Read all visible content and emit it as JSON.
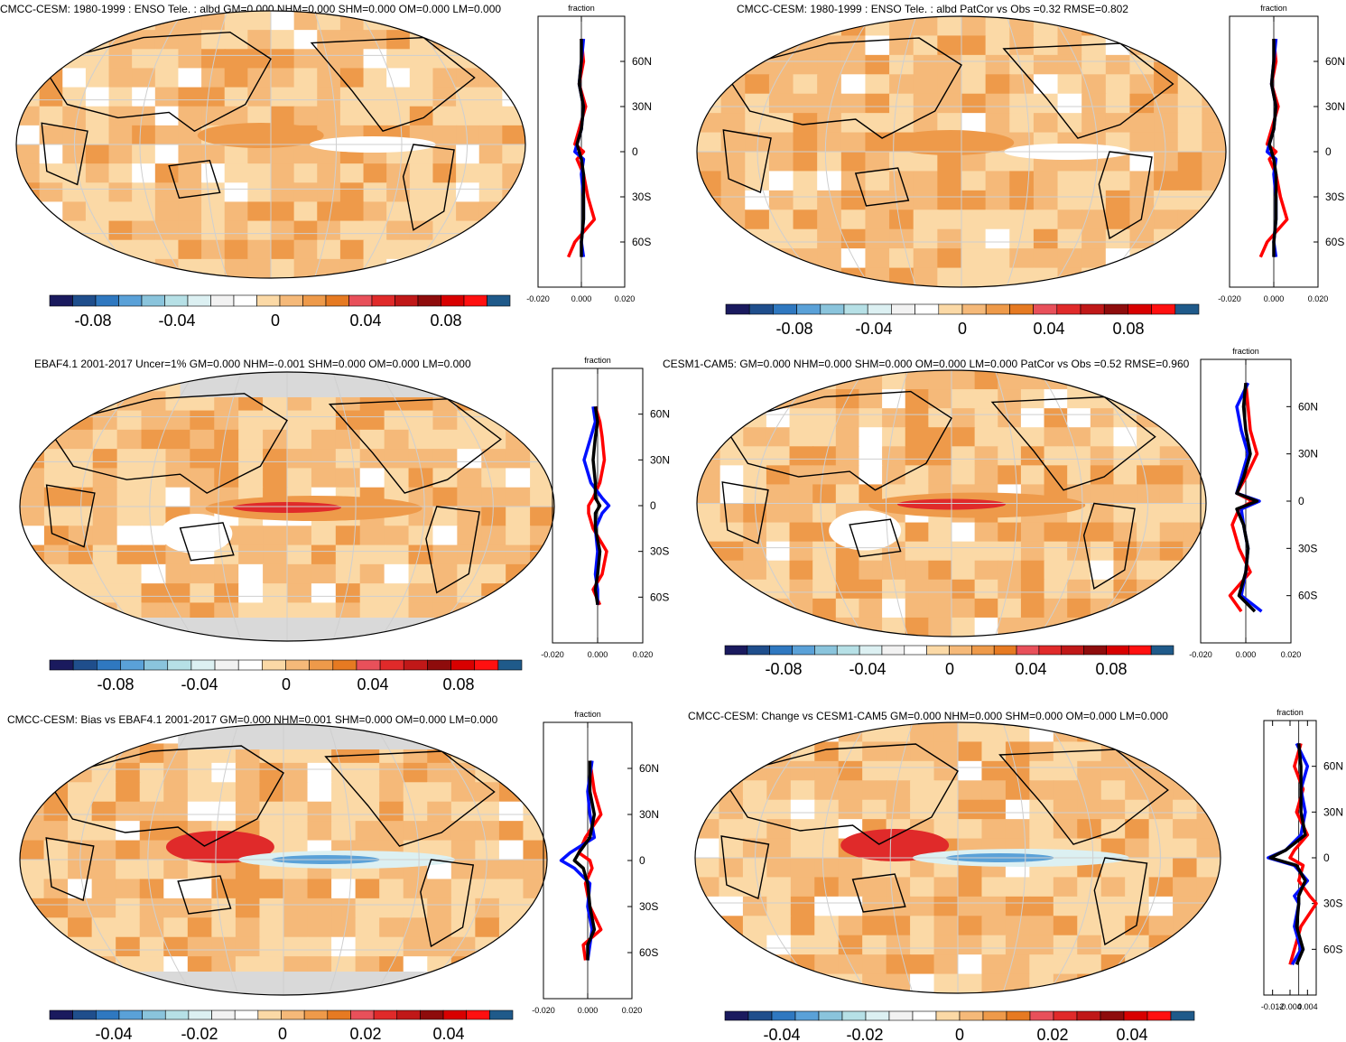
{
  "colors": {
    "palette": [
      "#1a1a5e",
      "#1f4e8c",
      "#2f78c0",
      "#5aa1d8",
      "#8ac4dc",
      "#b6e0e6",
      "#dcf0f2",
      "#f2f2f2",
      "#ffffff",
      "#fbd9a6",
      "#f5b979",
      "#ee9a4a",
      "#e67a22",
      "#e8505a",
      "#e02a2a",
      "#c01818",
      "#8e0c0c",
      "#d80000",
      "#ff1010",
      "#1f5a8a"
    ],
    "land_grey": "#d9d9d9",
    "red_line": "#ff0000",
    "blue_line": "#0010ff",
    "black_line": "#000000"
  },
  "panels": [
    {
      "title": "CMCC-CESM: 1980-1999 : ENSO Tele. : albd GM=0.000 NHM=0.000 SHM=0.000 OM=0.000 LM=0.000",
      "zonal": {
        "label": "fraction",
        "xticks": [
          "-0.020",
          "0.000",
          "0.020"
        ],
        "yticks": [
          "60N",
          "30N",
          "0",
          "30S",
          "60S"
        ]
      },
      "colorbar": {
        "labels": [
          "-0.08",
          "-0.04",
          "0",
          "0.04",
          "0.08"
        ]
      }
    },
    {
      "title": "CMCC-CESM: 1980-1999 : ENSO Tele. : albd PatCor vs Obs =0.32 RMSE=0.802",
      "zonal": {
        "label": "fraction",
        "xticks": [
          "-0.020",
          "0.000",
          "0.020"
        ],
        "yticks": [
          "60N",
          "30N",
          "0",
          "30S",
          "60S"
        ]
      },
      "colorbar": {
        "labels": [
          "-0.08",
          "-0.04",
          "0",
          "0.04",
          "0.08"
        ]
      }
    },
    {
      "title": "EBAF4.1 2001-2017 Uncer=1% GM=0.000 NHM=-0.001 SHM=0.000 OM=0.000 LM=0.000",
      "zonal": {
        "label": "fraction",
        "xticks": [
          "-0.020",
          "0.000",
          "0.020"
        ],
        "yticks": [
          "60N",
          "30N",
          "0",
          "30S",
          "60S"
        ]
      },
      "colorbar": {
        "labels": [
          "-0.08",
          "-0.04",
          "0",
          "0.04",
          "0.08"
        ]
      }
    },
    {
      "title": "CESM1-CAM5: GM=0.000 NHM=0.000 SHM=0.000 OM=0.000 LM=0.000 PatCor vs Obs =0.52 RMSE=0.960",
      "zonal": {
        "label": "fraction",
        "xticks": [
          "-0.020",
          "0.000",
          "0.020"
        ],
        "yticks": [
          "60N",
          "30N",
          "0",
          "30S",
          "60S"
        ]
      },
      "colorbar": {
        "labels": [
          "-0.08",
          "-0.04",
          "0",
          "0.04",
          "0.08"
        ]
      }
    },
    {
      "title": "CMCC-CESM: Bias vs EBAF4.1 2001-2017 GM=0.000 NHM=0.001 SHM=0.000 OM=0.000 LM=0.000",
      "zonal": {
        "label": "fraction",
        "xticks": [
          "-0.020",
          "0.000",
          "0.020"
        ],
        "yticks": [
          "60N",
          "30N",
          "0",
          "30S",
          "60S"
        ]
      },
      "colorbar": {
        "labels": [
          "-0.04",
          "-0.02",
          "0",
          "0.02",
          "0.04"
        ]
      }
    },
    {
      "title": "CMCC-CESM: Change vs CESM1-CAM5 GM=0.000 NHM=0.000 SHM=0.000 OM=0.000 LM=0.000",
      "zonal": {
        "label": "fraction",
        "xticks": [
          "-0.012",
          "-0.004",
          "0.004"
        ],
        "yticks": [
          "60N",
          "30N",
          "0",
          "30S",
          "60S"
        ]
      },
      "colorbar": {
        "labels": [
          "-0.04",
          "-0.02",
          "0",
          "0.02",
          "0.04"
        ]
      }
    }
  ],
  "chart_data": [
    {
      "type": "line",
      "ylim": [
        -90,
        90
      ],
      "xlim": [
        -0.02,
        0.02
      ],
      "lat": [
        75,
        60,
        45,
        30,
        15,
        5,
        0,
        -5,
        -15,
        -30,
        -45,
        -60,
        -70
      ],
      "series": [
        {
          "color": "#ff0000",
          "values": [
            0,
            0.001,
            -0.001,
            0.002,
            -0.001,
            -0.003,
            0.001,
            -0.002,
            0.001,
            0.003,
            0.006,
            -0.003,
            -0.006
          ]
        },
        {
          "color": "#0010ff",
          "values": [
            0.001,
            0,
            -0.001,
            0.001,
            0,
            -0.002,
            -0.003,
            0.001,
            0,
            0.001,
            0.001,
            0,
            0.001
          ]
        },
        {
          "color": "#000000",
          "values": [
            0,
            0,
            -0.001,
            0.001,
            0,
            -0.002,
            -0.001,
            0,
            0.001,
            0.001,
            0.001,
            0,
            0
          ]
        }
      ]
    },
    {
      "type": "line",
      "ylim": [
        -90,
        90
      ],
      "xlim": [
        -0.02,
        0.02
      ],
      "lat": [
        75,
        60,
        45,
        30,
        15,
        5,
        0,
        -5,
        -15,
        -30,
        -45,
        -60,
        -70
      ],
      "series": [
        {
          "color": "#ff0000",
          "values": [
            0,
            0.001,
            -0.001,
            0.002,
            -0.001,
            -0.003,
            0.001,
            -0.002,
            0.001,
            0.003,
            0.006,
            -0.003,
            -0.006
          ]
        },
        {
          "color": "#0010ff",
          "values": [
            0.001,
            0,
            -0.001,
            0.001,
            0,
            -0.002,
            -0.003,
            0.001,
            0,
            0.001,
            0.001,
            0,
            0.001
          ]
        },
        {
          "color": "#000000",
          "values": [
            0,
            0,
            -0.001,
            0.001,
            0,
            -0.002,
            -0.001,
            0,
            0.001,
            0.001,
            0.001,
            0,
            0
          ]
        }
      ]
    },
    {
      "type": "line",
      "ylim": [
        -90,
        90
      ],
      "xlim": [
        -0.02,
        0.02
      ],
      "lat": [
        65,
        55,
        45,
        30,
        15,
        5,
        0,
        -5,
        -15,
        -30,
        -45,
        -55,
        -65
      ],
      "series": [
        {
          "color": "#ff0000",
          "values": [
            -0.001,
            0.001,
            0.002,
            0.003,
            0.001,
            -0.002,
            -0.004,
            -0.004,
            -0.002,
            0.004,
            0.002,
            -0.002,
            0.001
          ]
        },
        {
          "color": "#0010ff",
          "values": [
            -0.002,
            -0.001,
            -0.003,
            -0.006,
            -0.003,
            0.002,
            0.005,
            0.002,
            -0.001,
            0,
            -0.001,
            0,
            0
          ]
        },
        {
          "color": "#000000",
          "values": [
            -0.001,
            0,
            -0.001,
            -0.002,
            -0.001,
            -0.001,
            0.001,
            -0.001,
            -0.001,
            0.001,
            0,
            -0.001,
            0
          ]
        }
      ]
    },
    {
      "type": "line",
      "ylim": [
        -90,
        90
      ],
      "xlim": [
        -0.02,
        0.02
      ],
      "lat": [
        75,
        60,
        45,
        30,
        15,
        5,
        0,
        -5,
        -15,
        -30,
        -45,
        -60,
        -70
      ],
      "series": [
        {
          "color": "#ff0000",
          "values": [
            0,
            0.001,
            0.002,
            0.005,
            0,
            -0.004,
            0.003,
            -0.003,
            -0.006,
            -0.003,
            0.002,
            -0.007,
            -0.002
          ]
        },
        {
          "color": "#0010ff",
          "values": [
            0.001,
            -0.004,
            -0.002,
            0.001,
            -0.002,
            -0.004,
            0.006,
            -0.002,
            -0.001,
            0.001,
            0,
            -0.002,
            0.007
          ]
        },
        {
          "color": "#000000",
          "values": [
            0,
            -0.001,
            0,
            0.002,
            -0.001,
            -0.004,
            0.005,
            -0.004,
            -0.001,
            0.001,
            0,
            -0.003,
            0.004
          ]
        }
      ]
    },
    {
      "type": "line",
      "ylim": [
        -90,
        90
      ],
      "xlim": [
        -0.02,
        0.02
      ],
      "lat": [
        65,
        55,
        45,
        30,
        15,
        5,
        0,
        -5,
        -15,
        -30,
        -45,
        -55,
        -65
      ],
      "series": [
        {
          "color": "#ff0000",
          "values": [
            0.001,
            0.002,
            0.003,
            0.006,
            -0.001,
            -0.004,
            0.001,
            0.002,
            -0.001,
            0.001,
            0.006,
            -0.002,
            -0.001
          ]
        },
        {
          "color": "#0010ff",
          "values": [
            0.002,
            0.001,
            0,
            0.001,
            0.003,
            -0.008,
            -0.012,
            -0.006,
            0.001,
            0,
            0.002,
            0.001,
            0
          ]
        },
        {
          "color": "#000000",
          "values": [
            0.001,
            0.001,
            0.001,
            0.003,
            0.001,
            -0.004,
            -0.006,
            -0.002,
            0,
            0.001,
            0.003,
            0,
            0
          ]
        }
      ]
    },
    {
      "type": "line",
      "ylim": [
        -90,
        90
      ],
      "xlim": [
        -0.016,
        0.008
      ],
      "lat": [
        75,
        60,
        45,
        30,
        15,
        5,
        0,
        -5,
        -15,
        -25,
        -30,
        -45,
        -60,
        -70
      ],
      "series": [
        {
          "color": "#ff0000",
          "values": [
            0.001,
            -0.002,
            0.002,
            -0.001,
            0.004,
            -0.002,
            -0.004,
            0.002,
            0,
            0.005,
            0.008,
            0.001,
            -0.002,
            -0.004
          ]
        },
        {
          "color": "#0010ff",
          "values": [
            -0.001,
            0.004,
            0.001,
            0.003,
            0.001,
            -0.006,
            -0.014,
            -0.002,
            0.004,
            -0.002,
            0,
            -0.002,
            0.001,
            -0.003
          ]
        },
        {
          "color": "#000000",
          "values": [
            0,
            0.001,
            0.001,
            0.001,
            0.003,
            -0.006,
            -0.013,
            -0.001,
            0.003,
            0,
            0,
            -0.001,
            0.002,
            -0.001
          ]
        }
      ]
    }
  ]
}
